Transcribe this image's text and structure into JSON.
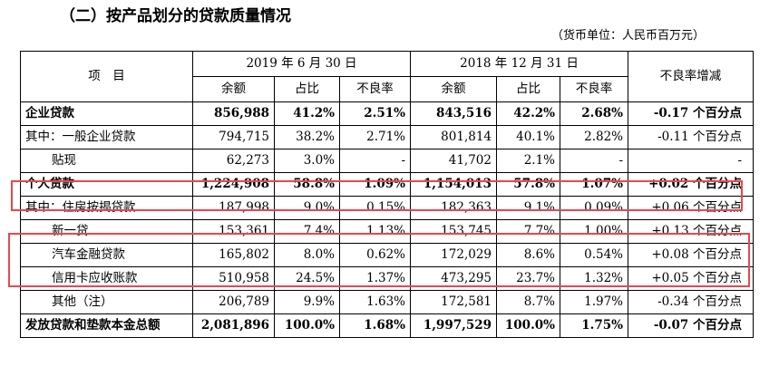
{
  "title": "（二）按产品划分的贷款质量情况",
  "unit": "（货币单位：人民币百万元）",
  "table": {
    "col_item": "项　目",
    "period1": "2019 年 6 月 30 日",
    "period2": "2018 年 12 月 31 日",
    "col_change": "不良率增减",
    "subheaders": [
      "余额",
      "占比",
      "不良率",
      "余额",
      "占比",
      "不良率"
    ],
    "rows": [
      {
        "label": "企业贷款",
        "cells": [
          "856,988",
          "41.2%",
          "2.51%",
          "843,516",
          "42.2%",
          "2.68%"
        ],
        "change": "-0.17 个百分点"
      },
      {
        "label": "其中：一般企业贷款",
        "cells": [
          "794,715",
          "38.2%",
          "2.71%",
          "801,814",
          "40.1%",
          "2.82%"
        ],
        "change": "-0.11 个百分点"
      },
      {
        "label": "贴现",
        "cells": [
          "62,273",
          "3.0%",
          "-",
          "41,702",
          "2.1%",
          "-"
        ],
        "change": "-"
      },
      {
        "label": "个人贷款",
        "cells": [
          "1,224,908",
          "58.8%",
          "1.09%",
          "1,154,013",
          "57.8%",
          "1.07%"
        ],
        "change": "+0.02 个百分点"
      },
      {
        "label": "其中：住房按揭贷款",
        "cells": [
          "187,998",
          "9.0%",
          "0.15%",
          "182,363",
          "9.1%",
          "0.09%"
        ],
        "change": "+0.06 个百分点"
      },
      {
        "label": "新一贷",
        "cells": [
          "153,361",
          "7.4%",
          "1.13%",
          "153,745",
          "7.7%",
          "1.00%"
        ],
        "change": "+0.13 个百分点"
      },
      {
        "label": "汽车金融贷款",
        "cells": [
          "165,802",
          "8.0%",
          "0.62%",
          "172,029",
          "8.6%",
          "0.54%"
        ],
        "change": "+0.08 个百分点"
      },
      {
        "label": "信用卡应收账款",
        "cells": [
          "510,958",
          "24.5%",
          "1.37%",
          "473,295",
          "23.7%",
          "1.32%"
        ],
        "change": "+0.05 个百分点"
      },
      {
        "label": "其他（注）",
        "cells": [
          "206,789",
          "9.9%",
          "1.63%",
          "172,581",
          "8.7%",
          "1.97%"
        ],
        "change": "-0.34 个百分点"
      },
      {
        "label": "发放贷款和垫款本金总额",
        "cells": [
          "2,081,896",
          "100.0%",
          "1.68%",
          "1,997,529",
          "100.0%",
          "1.75%"
        ],
        "change": "-0.07 个百分点"
      }
    ]
  },
  "colors": {
    "highlight": "#e8474f"
  }
}
